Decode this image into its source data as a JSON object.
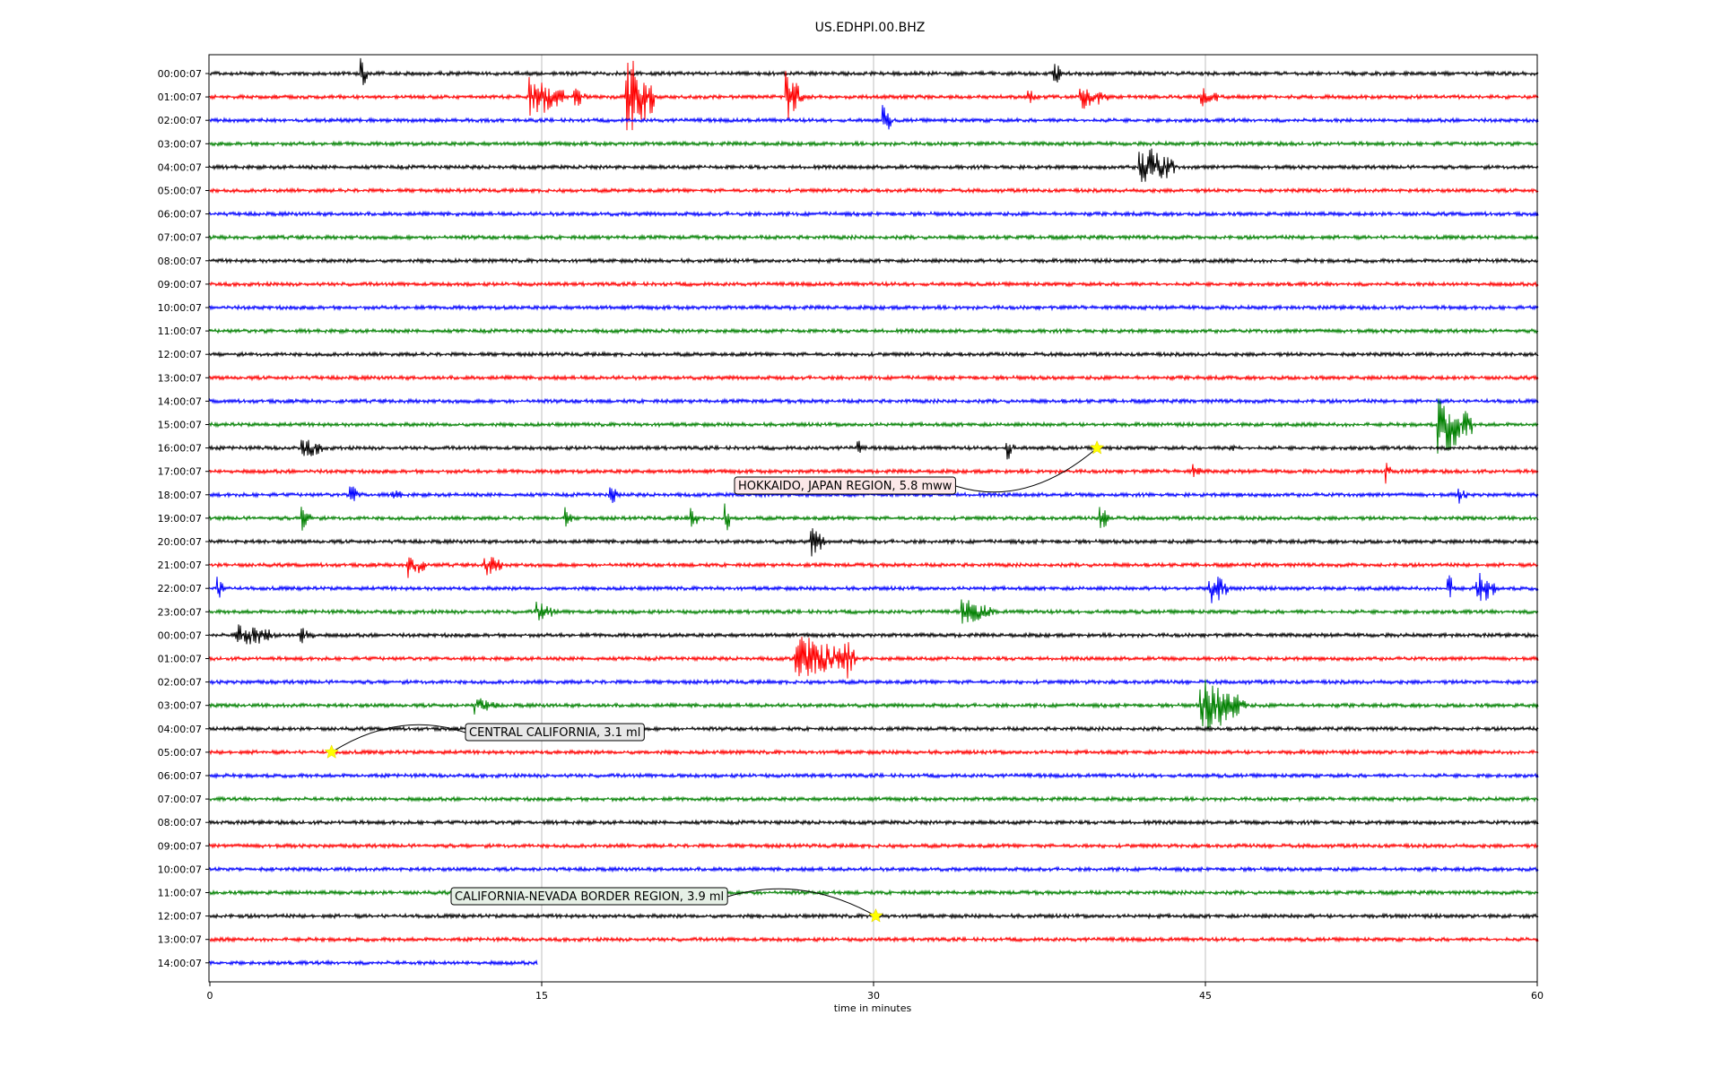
{
  "chart_data": {
    "type": "line",
    "title": "US.EDHPI.00.BHZ",
    "xlabel": "time in minutes",
    "ylabel": "",
    "xlim": [
      0,
      60
    ],
    "x_ticks": [
      "0",
      "15",
      "30",
      "45",
      "60"
    ],
    "x_tick_values": [
      0,
      15,
      30,
      45,
      60
    ],
    "grid": "vertical lines at 15, 30, 45",
    "row_labels": [
      "00:00:07",
      "01:00:07",
      "02:00:07",
      "03:00:07",
      "04:00:07",
      "05:00:07",
      "06:00:07",
      "07:00:07",
      "08:00:07",
      "09:00:07",
      "10:00:07",
      "11:00:07",
      "12:00:07",
      "13:00:07",
      "14:00:07",
      "15:00:07",
      "16:00:07",
      "17:00:07",
      "18:00:07",
      "19:00:07",
      "20:00:07",
      "21:00:07",
      "22:00:07",
      "23:00:07",
      "00:00:07",
      "01:00:07",
      "02:00:07",
      "03:00:07",
      "04:00:07",
      "05:00:07",
      "06:00:07",
      "07:00:07",
      "08:00:07",
      "09:00:07",
      "10:00:07",
      "11:00:07",
      "12:00:07",
      "13:00:07",
      "14:00:07"
    ],
    "row_color_cycle": [
      "#000000",
      "#ff0000",
      "#0000ff",
      "#008000"
    ],
    "last_row_end_minute": 14.8,
    "bursts": [
      {
        "row": 0,
        "minute": 6.9,
        "amp": 0.7,
        "dur": 0.2
      },
      {
        "row": 0,
        "minute": 38.2,
        "amp": 0.6,
        "dur": 0.3
      },
      {
        "row": 1,
        "minute": 14.5,
        "amp": 1.0,
        "dur": 1.5
      },
      {
        "row": 1,
        "minute": 16.5,
        "amp": 0.5,
        "dur": 0.6
      },
      {
        "row": 1,
        "minute": 18.9,
        "amp": 1.9,
        "dur": 1.2
      },
      {
        "row": 1,
        "minute": 26.1,
        "amp": 1.2,
        "dur": 0.7
      },
      {
        "row": 1,
        "minute": 37.0,
        "amp": 0.5,
        "dur": 0.4
      },
      {
        "row": 1,
        "minute": 39.4,
        "amp": 0.6,
        "dur": 1.2
      },
      {
        "row": 1,
        "minute": 44.8,
        "amp": 0.5,
        "dur": 0.8
      },
      {
        "row": 2,
        "minute": 30.5,
        "amp": 0.7,
        "dur": 0.3
      },
      {
        "row": 4,
        "minute": 42.1,
        "amp": 1.1,
        "dur": 1.5
      },
      {
        "row": 15,
        "minute": 55.5,
        "amp": 1.5,
        "dur": 1.5
      },
      {
        "row": 16,
        "minute": 4.2,
        "amp": 0.5,
        "dur": 1.0
      },
      {
        "row": 16,
        "minute": 29.3,
        "amp": 0.5,
        "dur": 0.2
      },
      {
        "row": 16,
        "minute": 36.1,
        "amp": 0.6,
        "dur": 0.3
      },
      {
        "row": 16,
        "minute": 46.1,
        "amp": 0.3,
        "dur": 0.3
      },
      {
        "row": 17,
        "minute": 44.5,
        "amp": 0.4,
        "dur": 0.3
      },
      {
        "row": 17,
        "minute": 53.2,
        "amp": 0.6,
        "dur": 0.2
      },
      {
        "row": 18,
        "minute": 6.4,
        "amp": 0.5,
        "dur": 0.5
      },
      {
        "row": 18,
        "minute": 8.3,
        "amp": 0.5,
        "dur": 0.3
      },
      {
        "row": 18,
        "minute": 18.1,
        "amp": 0.5,
        "dur": 0.4
      },
      {
        "row": 18,
        "minute": 56.5,
        "amp": 0.4,
        "dur": 0.3
      },
      {
        "row": 19,
        "minute": 4.2,
        "amp": 0.6,
        "dur": 0.5
      },
      {
        "row": 19,
        "minute": 16.1,
        "amp": 0.6,
        "dur": 0.2
      },
      {
        "row": 19,
        "minute": 21.8,
        "amp": 0.7,
        "dur": 0.2
      },
      {
        "row": 19,
        "minute": 23.3,
        "amp": 0.8,
        "dur": 0.2
      },
      {
        "row": 19,
        "minute": 40.3,
        "amp": 0.5,
        "dur": 0.5
      },
      {
        "row": 20,
        "minute": 27.2,
        "amp": 0.7,
        "dur": 0.6
      },
      {
        "row": 21,
        "minute": 9.0,
        "amp": 0.7,
        "dur": 0.7
      },
      {
        "row": 21,
        "minute": 12.5,
        "amp": 0.5,
        "dur": 0.8
      },
      {
        "row": 22,
        "minute": 0.3,
        "amp": 0.6,
        "dur": 0.5
      },
      {
        "row": 22,
        "minute": 45.2,
        "amp": 0.8,
        "dur": 0.8
      },
      {
        "row": 22,
        "minute": 56.0,
        "amp": 0.8,
        "dur": 0.3
      },
      {
        "row": 22,
        "minute": 57.3,
        "amp": 0.8,
        "dur": 0.8
      },
      {
        "row": 23,
        "minute": 14.8,
        "amp": 0.5,
        "dur": 0.8
      },
      {
        "row": 23,
        "minute": 34.0,
        "amp": 0.6,
        "dur": 1.5
      },
      {
        "row": 24,
        "minute": 1.2,
        "amp": 0.6,
        "dur": 1.8
      },
      {
        "row": 24,
        "minute": 4.1,
        "amp": 0.5,
        "dur": 0.6
      },
      {
        "row": 25,
        "minute": 26.5,
        "amp": 1.1,
        "dur": 2.5
      },
      {
        "row": 25,
        "minute": 28.8,
        "amp": 1.0,
        "dur": 0.4
      },
      {
        "row": 27,
        "minute": 12.0,
        "amp": 0.4,
        "dur": 1.0
      },
      {
        "row": 27,
        "minute": 44.8,
        "amp": 1.3,
        "dur": 2.0
      }
    ],
    "annotations": [
      {
        "text": "HOKKAIDO, JAPAN REGION, 5.8 mww",
        "row": 16,
        "minute": 40.1
      },
      {
        "text": "CENTRAL CALIFORNIA, 3.1 ml",
        "row": 29,
        "minute": 5.5
      },
      {
        "text": "CALIFORNIA-NEVADA BORDER REGION, 3.9 ml",
        "row": 36,
        "minute": 30.1
      }
    ]
  }
}
